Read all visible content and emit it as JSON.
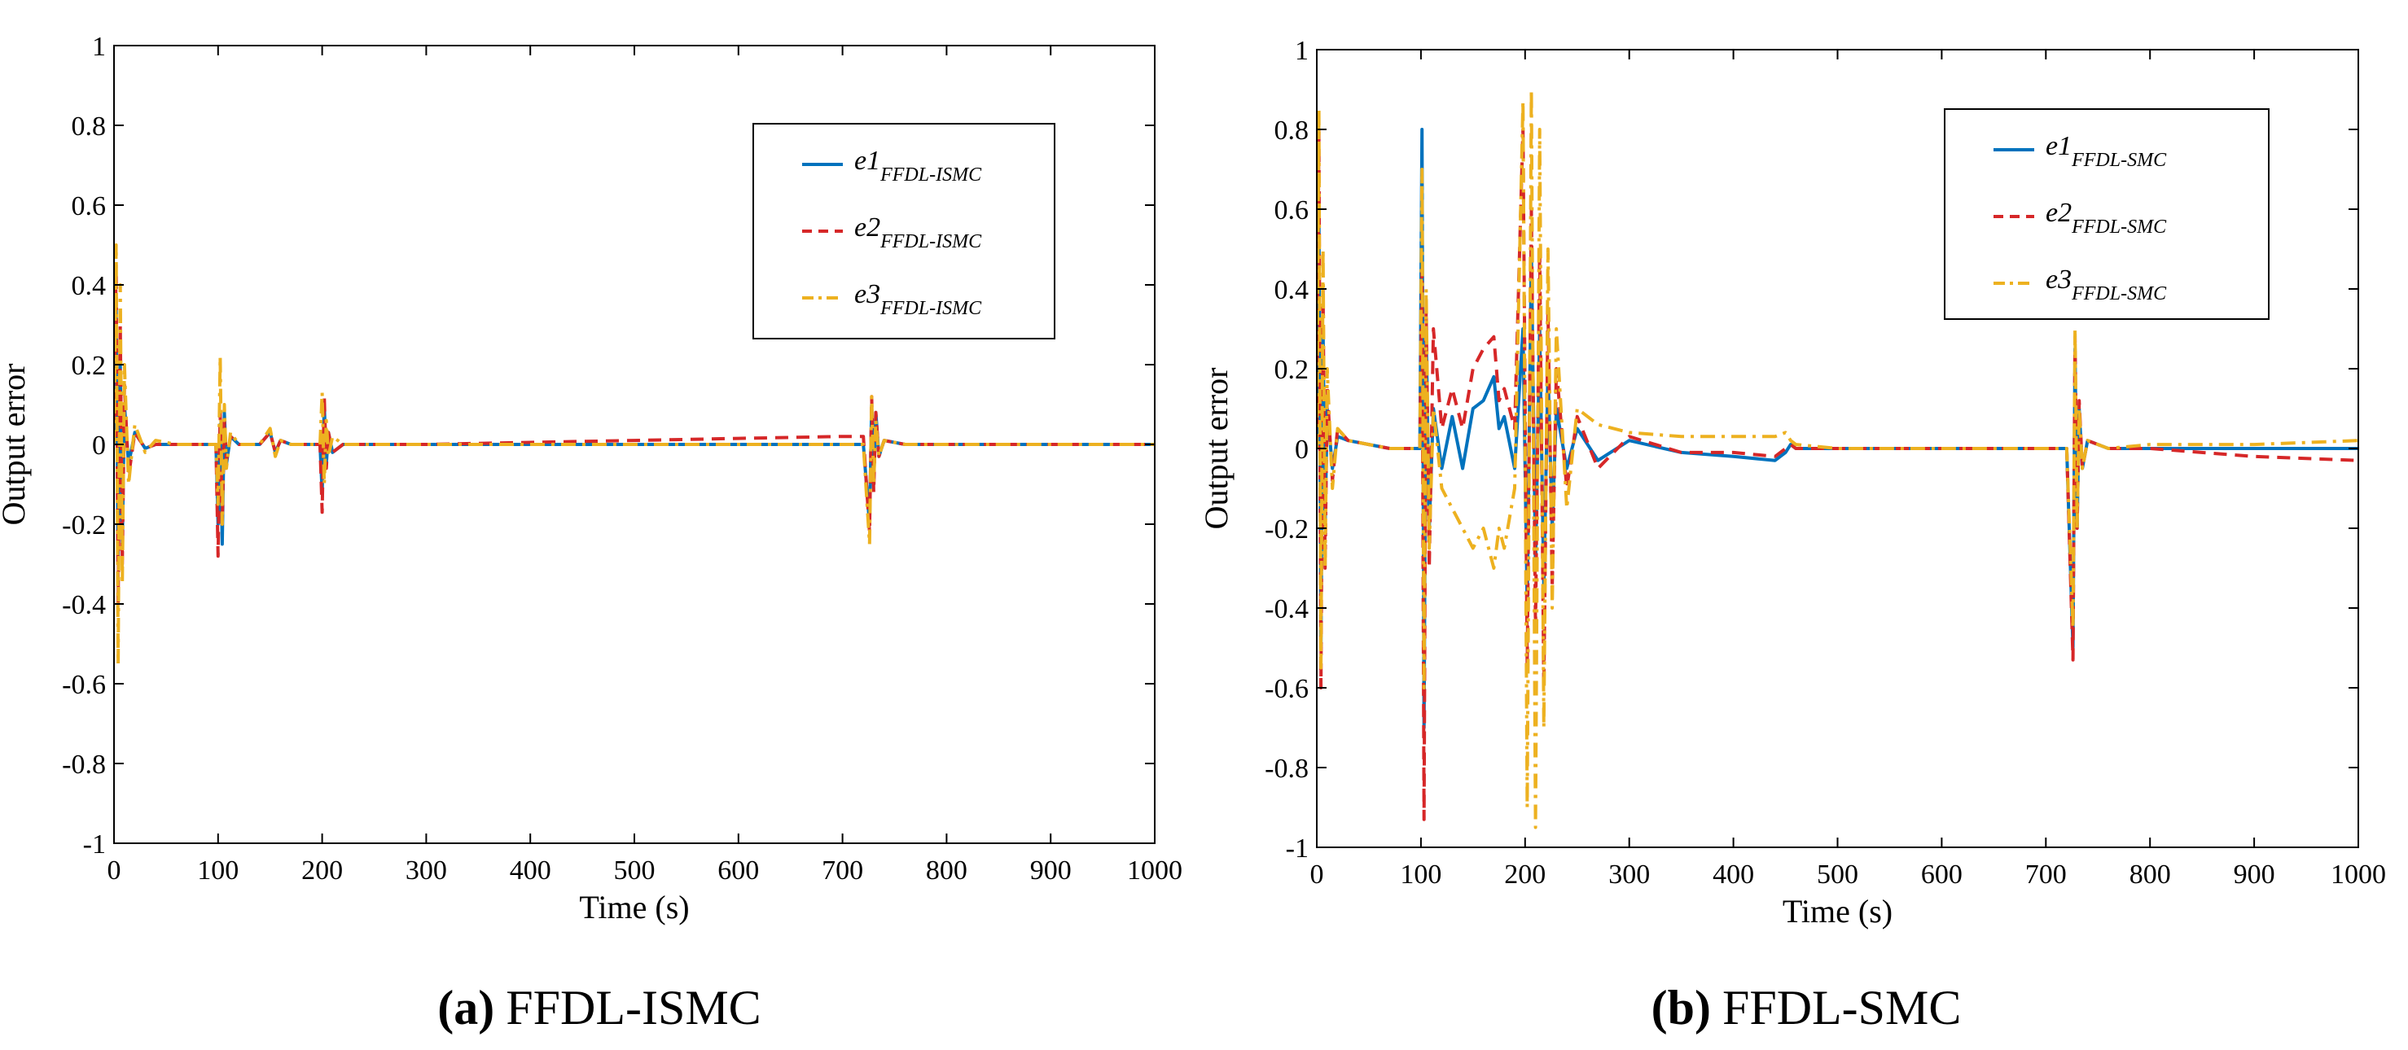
{
  "chart_data": [
    {
      "type": "line",
      "xlabel": "Time  (s)",
      "ylabel": "Output error",
      "xlim": [
        0,
        1000
      ],
      "ylim": [
        -1,
        1
      ],
      "x_ticks": [
        "0",
        "100",
        "200",
        "300",
        "400",
        "500",
        "600",
        "700",
        "800",
        "900",
        "1000"
      ],
      "y_ticks": [
        "-1",
        "-0.8",
        "-0.6",
        "-0.4",
        "-0.2",
        "0",
        "0.2",
        "0.4",
        "0.6",
        "0.8",
        "1"
      ],
      "grid": false,
      "legend_position": "top-right",
      "caption_label": "(a)",
      "caption_text": "FFDL-ISMC",
      "series": [
        {
          "name": "e1",
          "subscript": "FFDL-ISMC",
          "color": "#0072BD",
          "style": "solid",
          "x": [
            0,
            2,
            4,
            6,
            8,
            10,
            14,
            20,
            30,
            40,
            60,
            80,
            98,
            100,
            102,
            104,
            106,
            108,
            112,
            120,
            140,
            150,
            155,
            160,
            170,
            198,
            200,
            202,
            204,
            206,
            210,
            220,
            240,
            300,
            400,
            500,
            600,
            700,
            720,
            726,
            728,
            730,
            732,
            735,
            740,
            760,
            800,
            900,
            1000
          ],
          "y": [
            0,
            0.35,
            -0.3,
            0.2,
            -0.25,
            0.1,
            -0.05,
            0.03,
            -0.01,
            0,
            0,
            0,
            0,
            -0.2,
            0.05,
            -0.25,
            0.08,
            -0.05,
            0.02,
            0,
            0,
            0.03,
            -0.02,
            0.01,
            0,
            0,
            -0.12,
            0.1,
            -0.05,
            0.03,
            -0.02,
            0,
            0,
            0,
            0,
            0,
            0,
            0,
            0,
            -0.2,
            0.1,
            -0.1,
            0.08,
            -0.03,
            0.01,
            0,
            0,
            0,
            0
          ]
        },
        {
          "name": "e2",
          "subscript": "FFDL-ISMC",
          "color": "#D62728",
          "style": "dashed",
          "x": [
            0,
            2,
            4,
            6,
            8,
            10,
            14,
            20,
            30,
            40,
            60,
            80,
            98,
            100,
            102,
            104,
            106,
            108,
            112,
            120,
            140,
            150,
            155,
            160,
            170,
            198,
            200,
            202,
            204,
            206,
            210,
            220,
            240,
            300,
            400,
            500,
            600,
            700,
            720,
            726,
            728,
            730,
            732,
            735,
            740,
            760,
            800,
            900,
            1000
          ],
          "y": [
            0,
            0.45,
            -0.4,
            0.3,
            -0.3,
            0.15,
            -0.08,
            0.03,
            -0.01,
            0,
            0,
            0,
            0,
            -0.28,
            0.08,
            -0.2,
            0.06,
            -0.04,
            0.02,
            0,
            0,
            0.03,
            -0.02,
            0.01,
            0,
            0,
            -0.17,
            0.12,
            -0.06,
            0.03,
            -0.02,
            0,
            0,
            0,
            0.005,
            0.01,
            0.015,
            0.02,
            0.02,
            -0.22,
            0.12,
            -0.12,
            0.08,
            -0.03,
            0.01,
            0,
            0,
            0,
            0
          ]
        },
        {
          "name": "e3",
          "subscript": "FFDL-ISMC",
          "color": "#EDB120",
          "style": "dashdot",
          "x": [
            0,
            2,
            4,
            6,
            8,
            10,
            14,
            20,
            30,
            40,
            60,
            80,
            98,
            100,
            102,
            104,
            106,
            108,
            112,
            120,
            140,
            150,
            155,
            160,
            170,
            198,
            200,
            202,
            204,
            206,
            210,
            220,
            240,
            300,
            400,
            500,
            600,
            700,
            720,
            726,
            728,
            730,
            732,
            735,
            740,
            760,
            800,
            900,
            1000
          ],
          "y": [
            0,
            0.5,
            -0.55,
            0.4,
            -0.35,
            0.2,
            -0.1,
            0.05,
            -0.02,
            0.01,
            0,
            0,
            0,
            -0.15,
            0.22,
            -0.2,
            0.1,
            -0.06,
            0.03,
            0,
            0,
            0.04,
            -0.03,
            0.01,
            0,
            0,
            0.13,
            -0.1,
            0.06,
            -0.03,
            0.02,
            0,
            0,
            0,
            0,
            0,
            0,
            0,
            0,
            -0.25,
            0.12,
            -0.1,
            0.06,
            -0.03,
            0.01,
            0,
            0,
            0,
            0
          ]
        }
      ]
    },
    {
      "type": "line",
      "xlabel": "Time  (s)",
      "ylabel": "Output error",
      "xlim": [
        0,
        1000
      ],
      "ylim": [
        -1,
        1
      ],
      "x_ticks": [
        "0",
        "100",
        "200",
        "300",
        "400",
        "500",
        "600",
        "700",
        "800",
        "900",
        "1000"
      ],
      "y_ticks": [
        "-1",
        "-0.8",
        "-0.6",
        "-0.4",
        "-0.2",
        "0",
        "0.2",
        "0.4",
        "0.6",
        "0.8",
        "1"
      ],
      "grid": false,
      "legend_position": "top-right",
      "caption_label": "(b)",
      "caption_text": "FFDL-SMC",
      "series": [
        {
          "name": "e1",
          "subscript": "FFDL-SMC",
          "color": "#0072BD",
          "style": "solid",
          "x": [
            0,
            2,
            4,
            6,
            8,
            10,
            15,
            20,
            30,
            50,
            70,
            90,
            99,
            101,
            103,
            105,
            108,
            112,
            120,
            130,
            140,
            150,
            160,
            170,
            175,
            180,
            190,
            198,
            202,
            206,
            210,
            214,
            218,
            222,
            226,
            230,
            240,
            250,
            270,
            300,
            350,
            400,
            440,
            450,
            455,
            460,
            500,
            600,
            700,
            720,
            726,
            728,
            730,
            732,
            735,
            740,
            760,
            800,
            900,
            1000
          ],
          "y": [
            0,
            0.6,
            -0.5,
            0.3,
            -0.2,
            0.1,
            -0.05,
            0.03,
            0.02,
            0.01,
            0,
            0,
            0,
            0.8,
            -0.7,
            0.3,
            -0.2,
            0.1,
            -0.05,
            0.08,
            -0.05,
            0.1,
            0.12,
            0.18,
            0.05,
            0.08,
            -0.05,
            0.3,
            -0.4,
            0.5,
            -0.3,
            0.3,
            -0.35,
            0.2,
            -0.2,
            0.1,
            -0.05,
            0.05,
            -0.03,
            0.02,
            -0.01,
            -0.02,
            -0.03,
            -0.01,
            0.01,
            0,
            0,
            0,
            0,
            0,
            -0.5,
            0.25,
            -0.2,
            0.1,
            -0.05,
            0.02,
            0,
            0,
            0,
            0
          ]
        },
        {
          "name": "e2",
          "subscript": "FFDL-SMC",
          "color": "#D62728",
          "style": "dashed",
          "x": [
            0,
            2,
            4,
            6,
            8,
            10,
            15,
            20,
            30,
            50,
            70,
            90,
            99,
            101,
            103,
            105,
            108,
            112,
            120,
            130,
            140,
            150,
            160,
            170,
            175,
            180,
            190,
            198,
            202,
            206,
            210,
            214,
            218,
            222,
            226,
            230,
            240,
            250,
            270,
            300,
            350,
            400,
            440,
            450,
            455,
            460,
            500,
            600,
            700,
            720,
            726,
            728,
            730,
            732,
            735,
            740,
            760,
            800,
            900,
            1000
          ],
          "y": [
            0,
            0.8,
            -0.6,
            0.4,
            -0.3,
            0.15,
            -0.08,
            0.05,
            0.02,
            0.01,
            0,
            0,
            0,
            0.45,
            -0.93,
            0.35,
            -0.3,
            0.3,
            0.05,
            0.15,
            0.05,
            0.2,
            0.25,
            0.28,
            0.12,
            0.15,
            0.05,
            0.8,
            -0.55,
            0.6,
            -0.45,
            0.5,
            -0.6,
            0.35,
            -0.35,
            0.2,
            -0.1,
            0.08,
            -0.05,
            0.03,
            -0.01,
            -0.01,
            -0.02,
            0,
            0.01,
            0,
            0,
            0,
            0,
            0,
            -0.53,
            0.28,
            -0.2,
            0.12,
            -0.05,
            0.02,
            0,
            0,
            -0.02,
            -0.03
          ]
        },
        {
          "name": "e3",
          "subscript": "FFDL-SMC",
          "color": "#EDB120",
          "style": "dashdot",
          "x": [
            0,
            2,
            4,
            6,
            8,
            10,
            15,
            20,
            30,
            50,
            70,
            90,
            99,
            101,
            103,
            105,
            108,
            112,
            120,
            130,
            140,
            150,
            160,
            170,
            175,
            180,
            190,
            198,
            202,
            206,
            210,
            214,
            218,
            222,
            226,
            230,
            240,
            250,
            270,
            300,
            350,
            400,
            440,
            450,
            455,
            460,
            500,
            600,
            700,
            720,
            726,
            728,
            730,
            732,
            735,
            740,
            760,
            800,
            900,
            1000
          ],
          "y": [
            0,
            0.85,
            -0.55,
            0.5,
            -0.3,
            0.2,
            -0.1,
            0.05,
            0.02,
            0.01,
            0,
            0,
            0,
            0.7,
            -0.6,
            0.4,
            -0.25,
            0.1,
            -0.1,
            -0.15,
            -0.2,
            -0.25,
            -0.2,
            -0.3,
            -0.2,
            -0.25,
            -0.1,
            0.87,
            -0.9,
            0.9,
            -0.95,
            0.8,
            -0.7,
            0.5,
            -0.4,
            0.3,
            -0.15,
            0.1,
            0.06,
            0.04,
            0.03,
            0.03,
            0.03,
            0.04,
            0.02,
            0.01,
            0,
            0,
            0,
            0,
            -0.45,
            0.3,
            -0.2,
            0.1,
            -0.05,
            0.02,
            0,
            0.01,
            0.01,
            0.02
          ]
        }
      ]
    }
  ]
}
